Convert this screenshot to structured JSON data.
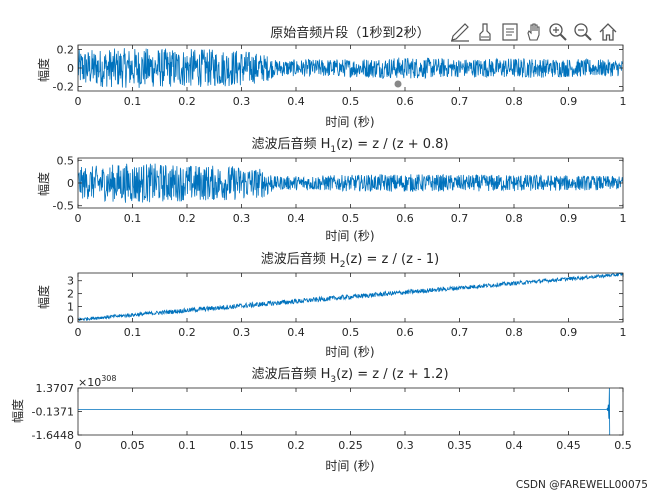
{
  "toolbar": {
    "icons": [
      "export-icon",
      "brush-icon",
      "data-tips-icon",
      "pan-hand-icon",
      "zoom-in-icon",
      "zoom-out-icon",
      "home-icon"
    ]
  },
  "colors": {
    "line": "#0072bd",
    "axis": "#262626",
    "background": "#ffffff"
  },
  "watermark": "CSDN @FAREWELL00075",
  "chart_data": [
    {
      "type": "line",
      "title": "原始音频片段（1秒到2秒）",
      "xlabel": "时间 (秒)",
      "ylabel": "幅度",
      "xlim": [
        0,
        1
      ],
      "ylim": [
        -0.25,
        0.25
      ],
      "xticks": [
        0,
        0.1,
        0.2,
        0.3,
        0.4,
        0.5,
        0.6,
        0.7,
        0.8,
        0.9,
        1
      ],
      "xtick_labels": [
        "0",
        "0.1",
        "0.2",
        "0.3",
        "0.4",
        "0.5",
        "0.6",
        "0.7",
        "0.8",
        "0.9",
        "1"
      ],
      "yticks": [
        -0.2,
        0,
        0.2
      ],
      "ytick_labels": [
        "-0.2",
        "0",
        "0.2"
      ],
      "series": [
        {
          "envelope": {
            "x": [
              0,
              0.1,
              0.2,
              0.3,
              0.35,
              0.36,
              0.5,
              0.6,
              0.7,
              0.8,
              0.9,
              1
            ],
            "amplitude": [
              0.2,
              0.22,
              0.21,
              0.2,
              0.14,
              0.09,
              0.1,
              0.12,
              0.1,
              0.11,
              0.1,
              0.09
            ]
          },
          "trend": {
            "x": [
              0,
              1
            ],
            "y": [
              0,
              0
            ]
          }
        }
      ]
    },
    {
      "type": "line",
      "title_prefix": "滤波后音频 H",
      "title_sub": "1",
      "title_suffix": "(z) = z / (z + 0.8)",
      "xlabel": "时间 (秒)",
      "ylabel": "幅度",
      "xlim": [
        0,
        1
      ],
      "ylim": [
        -0.55,
        0.55
      ],
      "xticks": [
        0,
        0.1,
        0.2,
        0.3,
        0.4,
        0.5,
        0.6,
        0.7,
        0.8,
        0.9,
        1
      ],
      "xtick_labels": [
        "0",
        "0.1",
        "0.2",
        "0.3",
        "0.4",
        "0.5",
        "0.6",
        "0.7",
        "0.8",
        "0.9",
        "1"
      ],
      "yticks": [
        -0.5,
        0,
        0.5
      ],
      "ytick_labels": [
        "-0.5",
        "0",
        "0.5"
      ],
      "series": [
        {
          "envelope": {
            "x": [
              0,
              0.1,
              0.2,
              0.3,
              0.35,
              0.36,
              0.5,
              0.6,
              0.7,
              0.8,
              0.9,
              1
            ],
            "amplitude": [
              0.35,
              0.45,
              0.4,
              0.38,
              0.3,
              0.15,
              0.18,
              0.2,
              0.18,
              0.19,
              0.17,
              0.15
            ]
          },
          "trend": {
            "x": [
              0,
              1
            ],
            "y": [
              0,
              0
            ]
          }
        }
      ]
    },
    {
      "type": "line",
      "title_prefix": "滤波后音频 H",
      "title_sub": "2",
      "title_suffix": "(z) = z / (z - 1)",
      "xlabel": "时间 (秒)",
      "ylabel": "幅度",
      "xlim": [
        0,
        1
      ],
      "ylim": [
        -0.2,
        3.6
      ],
      "xticks": [
        0,
        0.1,
        0.2,
        0.3,
        0.4,
        0.5,
        0.6,
        0.7,
        0.8,
        0.9,
        1
      ],
      "xtick_labels": [
        "0",
        "0.1",
        "0.2",
        "0.3",
        "0.4",
        "0.5",
        "0.6",
        "0.7",
        "0.8",
        "0.9",
        "1"
      ],
      "yticks": [
        0,
        1,
        2,
        3
      ],
      "ytick_labels": [
        "0",
        "1",
        "2",
        "3"
      ],
      "series": [
        {
          "envelope": {
            "x": [
              0,
              0.3,
              0.5,
              0.7,
              1
            ],
            "amplitude": [
              0.12,
              0.2,
              0.18,
              0.17,
              0.12
            ]
          },
          "trend": {
            "x": [
              0,
              1
            ],
            "y": [
              0,
              3.5
            ]
          }
        }
      ]
    },
    {
      "type": "line",
      "title_prefix": "滤波后音频 H",
      "title_sub": "3",
      "title_suffix": "(z) = z / (z + 1.2)",
      "xlabel": "时间 (秒)",
      "ylabel": "幅度",
      "exponent_label": "×10",
      "exponent_power": "308",
      "xlim": [
        0,
        0.5
      ],
      "ylim": [
        -1.6448,
        1.3707
      ],
      "xticks": [
        0,
        0.05,
        0.1,
        0.15,
        0.2,
        0.25,
        0.3,
        0.35,
        0.4,
        0.45,
        0.5
      ],
      "xtick_labels": [
        "0",
        "0.05",
        "0.1",
        "0.15",
        "0.2",
        "0.25",
        "0.3",
        "0.35",
        "0.4",
        "0.45",
        "0.5"
      ],
      "yticks": [
        -1.6448,
        -0.1371,
        1.3707
      ],
      "ytick_labels": [
        "-1.6448",
        "-0.1371",
        "1.3707"
      ],
      "series": [
        {
          "points": {
            "x": [
              0,
              0.485,
              0.4855,
              0.486,
              0.4865,
              0.487,
              0.4875,
              0.4878
            ],
            "y": [
              0,
              0,
              0.05,
              -0.1,
              0.3,
              -0.6,
              1.37,
              -1.6448
            ]
          }
        }
      ]
    }
  ]
}
